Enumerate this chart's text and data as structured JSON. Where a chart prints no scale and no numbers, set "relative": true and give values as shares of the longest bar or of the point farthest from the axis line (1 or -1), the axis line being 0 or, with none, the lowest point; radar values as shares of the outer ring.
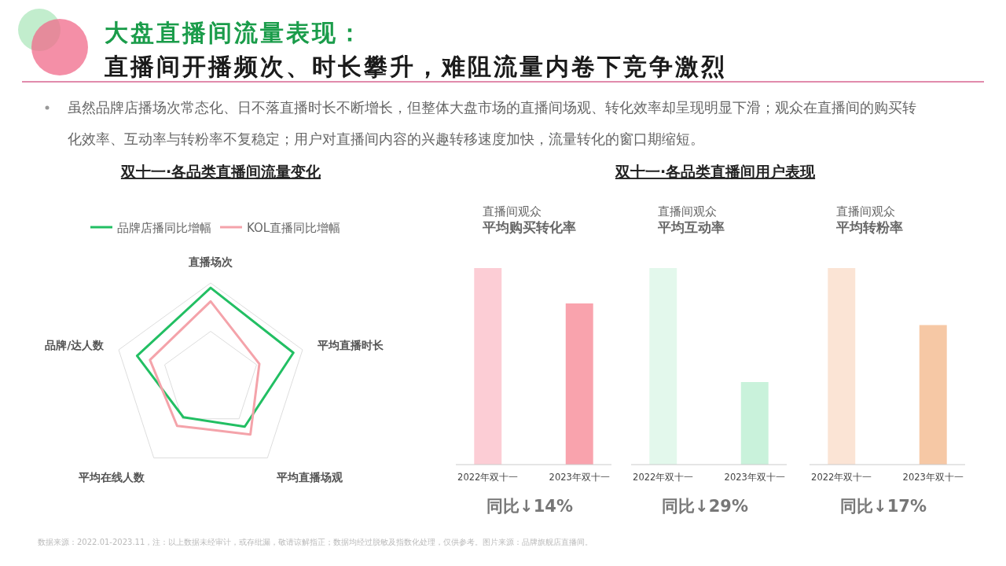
{
  "chart_data": [
    {
      "type": "other",
      "title": "大盘直播间流量表现：",
      "subtitle": "直播间开播频次、时长攀升，难阻流量内卷下竞争激烈",
      "annotations": [
        "虽然品牌店播场次常态化、日不落直播时长不断增长，但整体大盘市场的直播间场观、转化效率却呈现明显下滑；观众在直播间的购买转化效率、互动率与转粉率不复稳定；用户对直播间内容的兴趣转移速度加快，流量转化的窗口期缩短。"
      ]
    },
    {
      "type": "radar",
      "title": "双十一·各品类直播间流量变化",
      "relative": true,
      "grid": true,
      "legend": "top",
      "categories": [
        "直播场次",
        "平均直播时长",
        "平均直播场观",
        "平均在线人数",
        "品牌/达人数"
      ],
      "series": [
        {
          "name": "品牌店播同比增幅",
          "color": "#22bf63",
          "values": [
            0.95,
            0.9,
            0.6,
            0.48,
            0.8
          ]
        },
        {
          "name": "KOL直播同比增幅",
          "color": "#f4a3aa",
          "values": [
            0.81,
            0.53,
            0.7,
            0.59,
            0.66
          ]
        }
      ]
    },
    {
      "type": "other",
      "title": "双十一·各品类直播间用户表现"
    },
    {
      "type": "bar",
      "relative": true,
      "subtitle": "直播间观众",
      "title": "平均购买转化率",
      "categories": [
        "2022年双十一",
        "2023年双十一"
      ],
      "values": [
        1,
        0.82
      ],
      "colors": [
        "#fccdd5",
        "#f9a3ad"
      ],
      "annotations": [
        "同比↓14%"
      ]
    },
    {
      "type": "bar",
      "relative": true,
      "subtitle": "直播间观众",
      "title": "平均互动率",
      "categories": [
        "2022年双十一",
        "2023年双十一"
      ],
      "values": [
        1,
        0.42
      ],
      "colors": [
        "#e3f8ec",
        "#c9f2db"
      ],
      "annotations": [
        "同比↓29%"
      ]
    },
    {
      "type": "bar",
      "relative": true,
      "subtitle": "直播间观众",
      "title": "平均转粉率",
      "categories": [
        "2022年双十一",
        "2023年双十一"
      ],
      "values": [
        1,
        0.71
      ],
      "colors": [
        "#fbe4d5",
        "#f6c8a5"
      ],
      "annotations": [
        "同比↓17%",
        "数据来源：2022.01-2023.11，注：以上数据未经审计，或存纰漏，敬请谅解指正；数据均经过脱敏及指数化处理，仅供参考。图片来源：品牌旗舰店直播间。"
      ]
    }
  ]
}
